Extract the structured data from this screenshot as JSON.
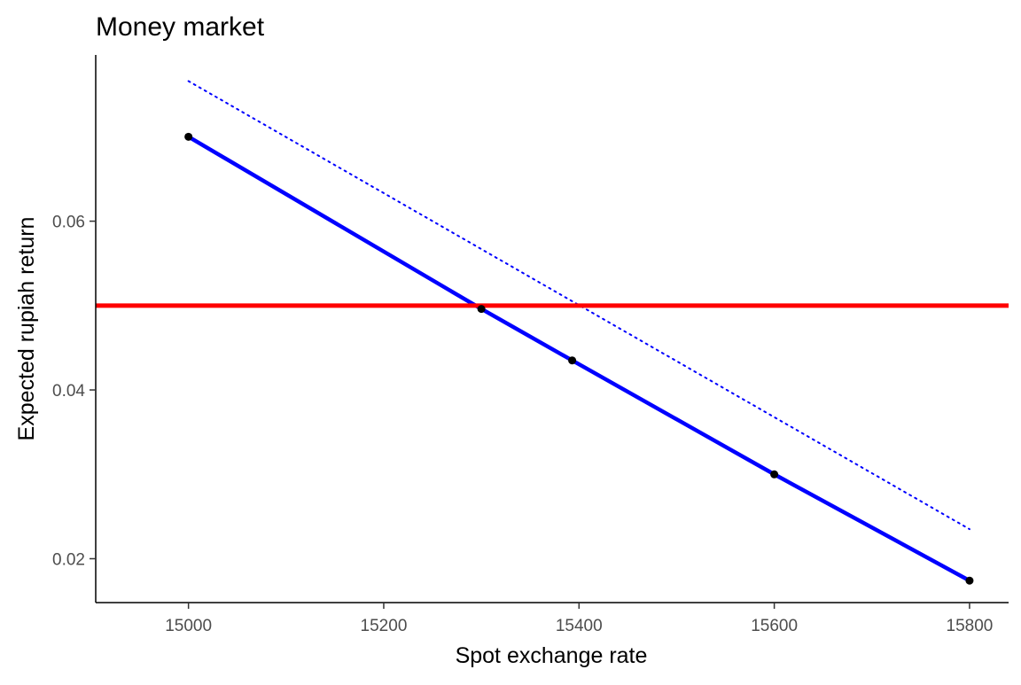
{
  "chart_data": {
    "type": "line",
    "title": "Money market",
    "xlabel": "Spot exchange rate",
    "ylabel": "Expected rupiah return",
    "xlim": [
      14905,
      15840
    ],
    "ylim": [
      0.0148,
      0.0797
    ],
    "x_ticks": [
      15000,
      15200,
      15400,
      15600,
      15800
    ],
    "y_ticks": [
      0.02,
      0.04,
      0.06
    ],
    "x_tick_labels": [
      "15000",
      "15200",
      "15400",
      "15600",
      "15800"
    ],
    "y_tick_labels": [
      "0.02",
      "0.04",
      "0.06"
    ],
    "grid": false,
    "legend": "none",
    "series": [
      {
        "style": "dotted",
        "color": "#0000FF",
        "points": [
          {
            "x": 15000,
            "y": 0.0766
          },
          {
            "x": 15800,
            "y": 0.0235
          }
        ]
      },
      {
        "style": "solid-with-points",
        "color": "#0000FF",
        "point_color": "#000000",
        "points": [
          {
            "x": 15000,
            "y": 0.07
          },
          {
            "x": 15300,
            "y": 0.0496
          },
          {
            "x": 15393,
            "y": 0.0435
          },
          {
            "x": 15600,
            "y": 0.03
          },
          {
            "x": 15800,
            "y": 0.0174
          }
        ]
      }
    ],
    "hline": {
      "y": 0.05,
      "color": "#FF0000"
    }
  }
}
